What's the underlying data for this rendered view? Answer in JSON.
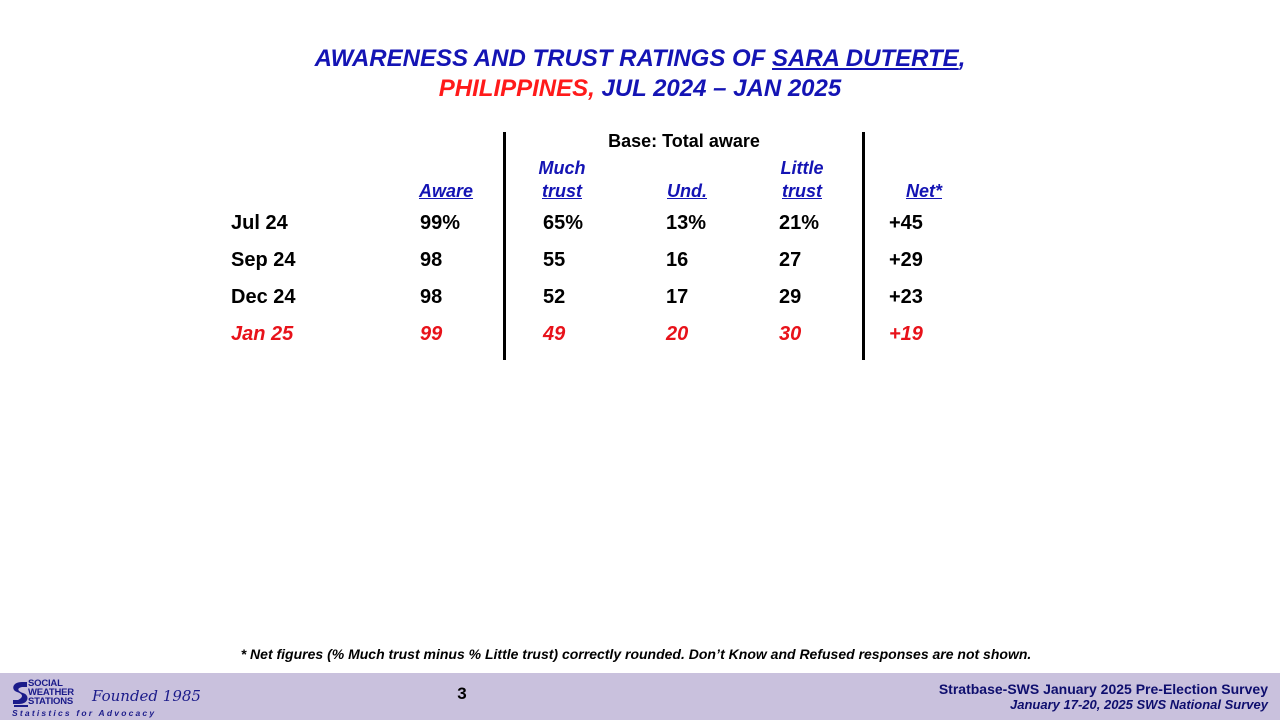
{
  "title": {
    "part1": "AWARENESS AND TRUST RATINGS OF ",
    "name": "SARA DUTERTE",
    "comma": ",",
    "country": "PHILIPPINES,",
    "period": " JUL 2024 – JAN 2025"
  },
  "table": {
    "base_label": "Base: Total aware",
    "headers": {
      "aware": "Aware",
      "much_line1": "Much",
      "much_line2": "trust",
      "und": "Und.",
      "little_line1": "Little",
      "little_line2": "trust",
      "net": "Net*"
    },
    "rows": [
      {
        "period": "Jul 24",
        "aware": "99%",
        "much": "65%",
        "und": "13%",
        "little": "21%",
        "net": "+45"
      },
      {
        "period": "Sep 24",
        "aware": "98",
        "much": "55",
        "und": "16",
        "little": "27",
        "net": "+29"
      },
      {
        "period": "Dec 24",
        "aware": "98",
        "much": "52",
        "und": "17",
        "little": "29",
        "net": "+23"
      },
      {
        "period": "Jan 25",
        "aware": "99",
        "much": "49",
        "und": "20",
        "little": "30",
        "net": "+19"
      }
    ]
  },
  "footnote": "* Net figures (% Much trust minus % Little trust) correctly rounded. Don’t Know and Refused responses are not shown.",
  "footer": {
    "page_number": "3",
    "survey_line1": "Stratbase-SWS January 2025 Pre-Election Survey",
    "survey_line2": "January 17-20, 2025 SWS National Survey",
    "logo_line1": "SOCIAL",
    "logo_line2": "WEATHER",
    "logo_line3": "STATIONS",
    "logo_founded": "Founded 1985",
    "logo_tagline": "Statistics for Advocacy"
  },
  "colors": {
    "title_blue": "#1414b4",
    "highlight_red": "#e8121a",
    "footer_bg": "#c9c1dd"
  }
}
